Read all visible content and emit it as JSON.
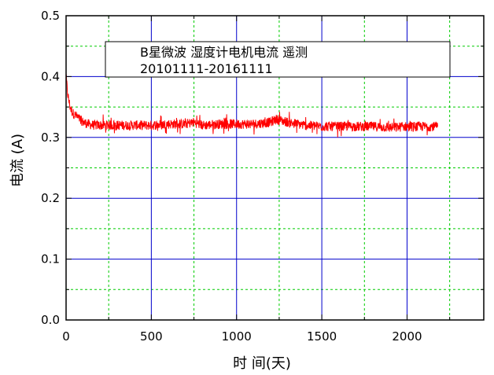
{
  "chart_data": {
    "type": "line",
    "title": "",
    "xlabel": "时 间(天)",
    "ylabel": "电流 (A)",
    "xlim": [
      0,
      2450
    ],
    "ylim": [
      0,
      0.5
    ],
    "x_ticks": [
      "0",
      "500",
      "1000",
      "1500",
      "2000"
    ],
    "y_ticks": [
      "0.0",
      "0.1",
      "0.2",
      "0.3",
      "0.4",
      "0.5"
    ],
    "grid": true,
    "legend_position": "top-center",
    "legend_lines": [
      "B星微波 湿度计电机电流 遥测",
      "20101111-20161111"
    ],
    "colors": {
      "series": "#ff0000",
      "major_grid": "#0000cc",
      "minor_grid": "#00cc00"
    },
    "series": [
      {
        "x": [
          0,
          5,
          10,
          20,
          30,
          40,
          60,
          80,
          100,
          130,
          160,
          200,
          250,
          300,
          400,
          500,
          600,
          700,
          750,
          800,
          900,
          1000,
          1100,
          1200,
          1230,
          1300,
          1400,
          1500,
          1600,
          1700,
          1800,
          1900,
          2000,
          2100,
          2180
        ],
        "values": [
          0.4,
          0.385,
          0.37,
          0.355,
          0.345,
          0.34,
          0.335,
          0.33,
          0.325,
          0.322,
          0.32,
          0.32,
          0.32,
          0.32,
          0.32,
          0.32,
          0.322,
          0.322,
          0.325,
          0.32,
          0.322,
          0.322,
          0.322,
          0.325,
          0.33,
          0.325,
          0.32,
          0.318,
          0.318,
          0.318,
          0.318,
          0.316,
          0.318,
          0.318,
          0.318
        ]
      }
    ]
  }
}
